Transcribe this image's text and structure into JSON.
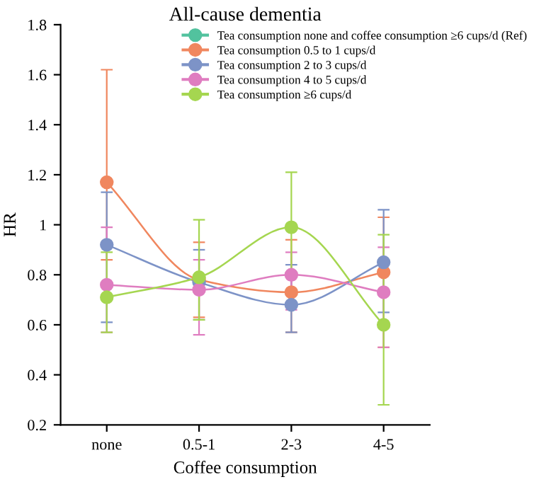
{
  "chart_data": {
    "type": "line",
    "title": "All-cause dementia",
    "xlabel": "Coffee consumption",
    "ylabel": "HR",
    "categories": [
      "none",
      "0.5-1",
      "2-3",
      "4-5"
    ],
    "ylim": [
      0.2,
      1.8
    ],
    "yticks": [
      0.2,
      0.4,
      0.6,
      0.8,
      1,
      1.2,
      1.4,
      1.6,
      1.8
    ],
    "grid": false,
    "legend": "top right",
    "marker": "circle",
    "line_style": "solid",
    "series": [
      {
        "name": "Tea consumption none and coffee consumption ≥6 cups/d (Ref)",
        "color": "#52c29e",
        "values": [
          null,
          null,
          null,
          null
        ]
      },
      {
        "name": "Tea consumption 0.5 to 1 cups/d",
        "color": "#f0875f",
        "values": [
          1.17,
          0.78,
          0.73,
          0.81
        ],
        "errors": [
          [
            0.86,
            1.62
          ],
          [
            0.63,
            0.93
          ],
          [
            0.57,
            0.94
          ],
          [
            0.51,
            1.03
          ]
        ]
      },
      {
        "name": "Tea consumption 2 to 3 cups/d",
        "color": "#7d93c7",
        "values": [
          0.92,
          0.77,
          0.68,
          0.85
        ],
        "errors": [
          [
            0.61,
            1.13
          ],
          [
            0.62,
            0.9
          ],
          [
            0.57,
            0.84
          ],
          [
            0.65,
            1.06
          ]
        ]
      },
      {
        "name": "Tea consumption 4 to 5 cups/d",
        "color": "#df7dc0",
        "values": [
          0.76,
          0.74,
          0.8,
          0.73
        ],
        "errors": [
          [
            0.57,
            0.99
          ],
          [
            0.56,
            0.86
          ],
          [
            0.66,
            0.89
          ],
          [
            0.51,
            0.91
          ]
        ]
      },
      {
        "name": "Tea consumption ≥6 cups/d",
        "color": "#a5d650",
        "values": [
          0.71,
          0.79,
          0.99,
          0.6
        ],
        "errors": [
          [
            0.57,
            0.89
          ],
          [
            0.62,
            1.02
          ],
          [
            0.81,
            1.21
          ],
          [
            0.28,
            0.96
          ]
        ]
      }
    ]
  }
}
